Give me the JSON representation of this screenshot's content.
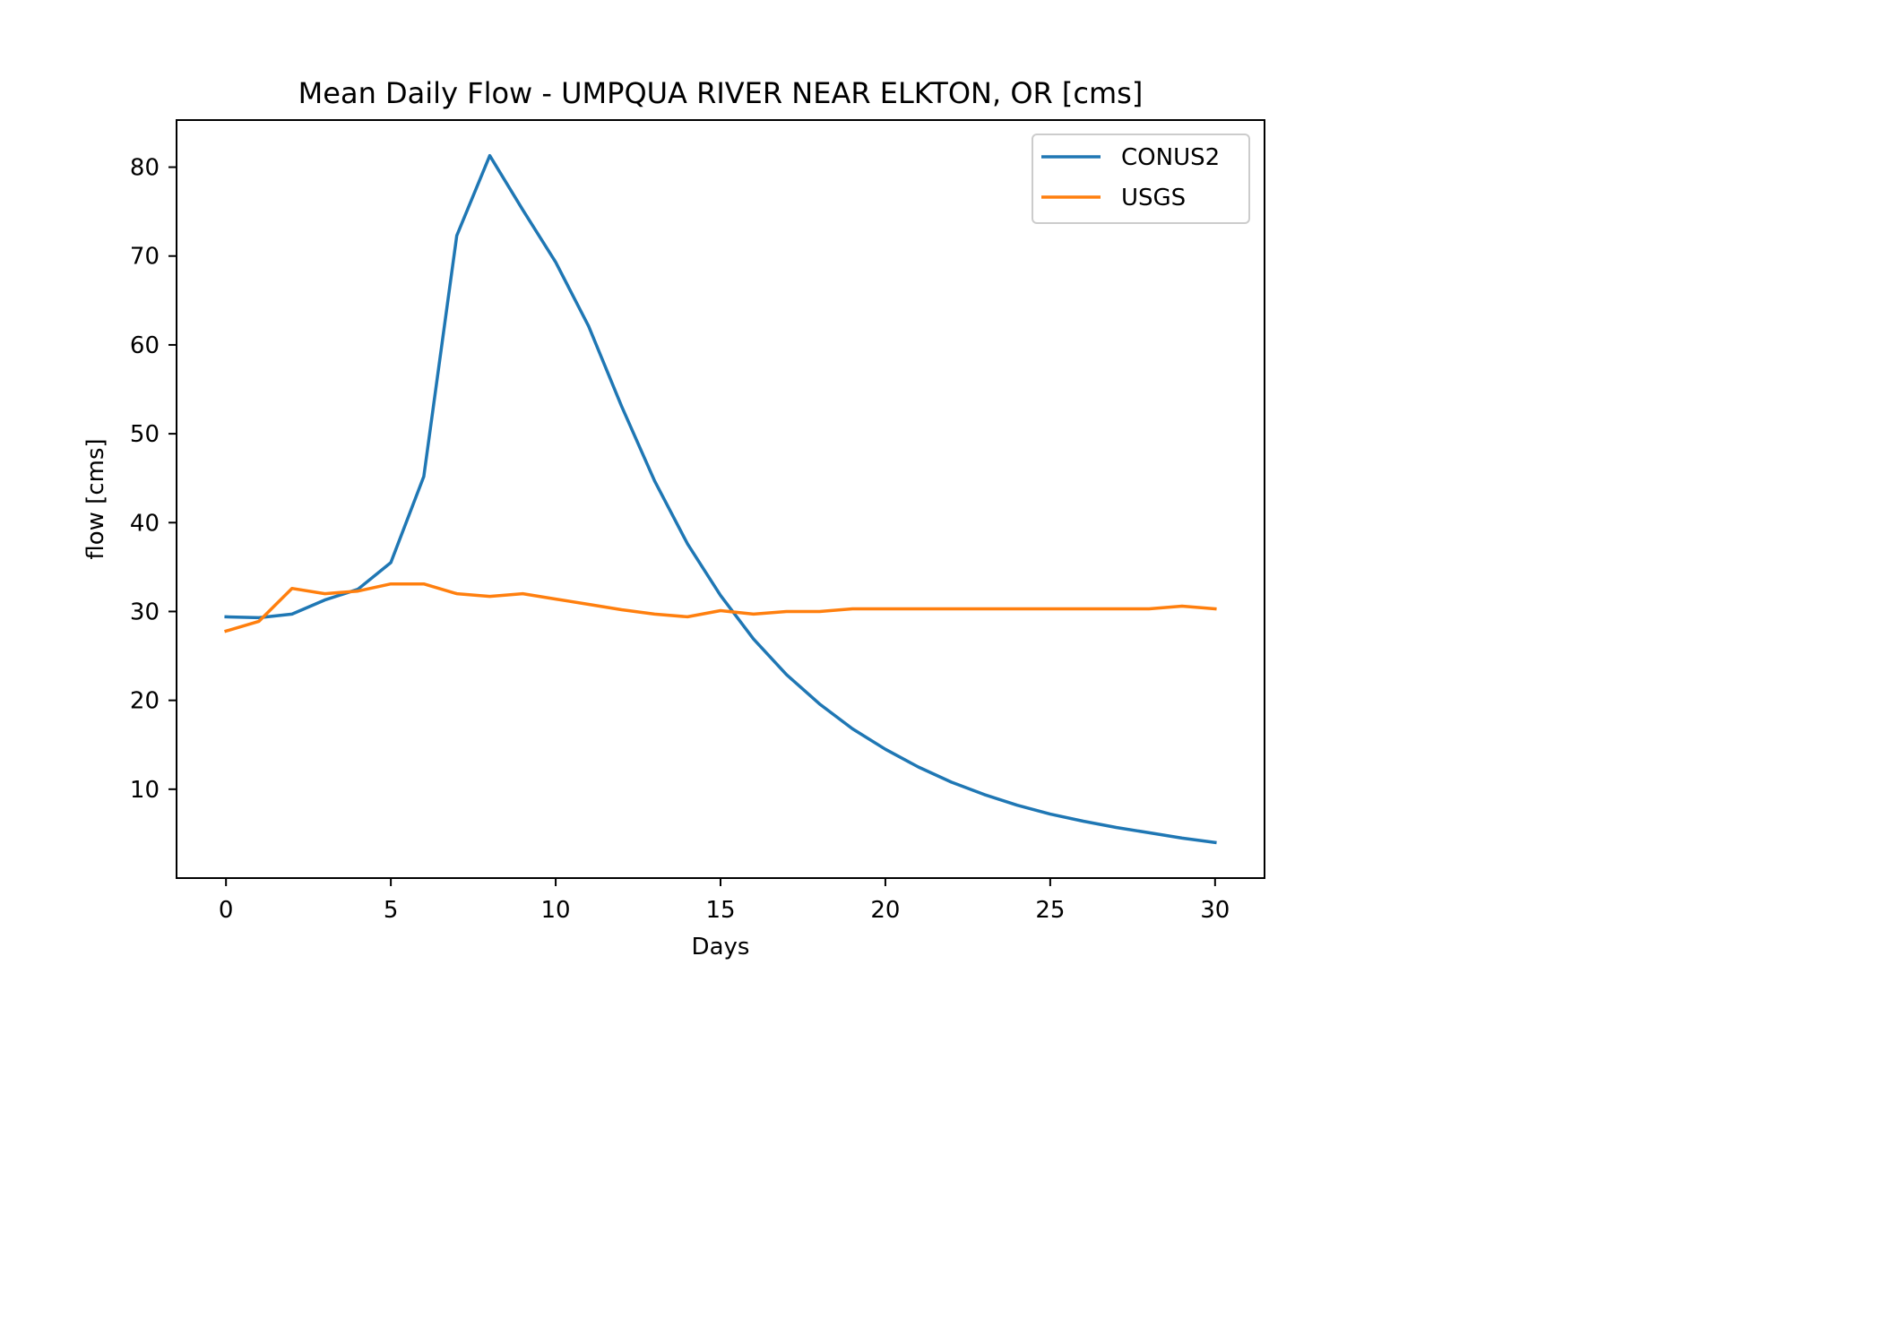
{
  "chart_data": {
    "type": "line",
    "title": "Mean Daily Flow - UMPQUA RIVER NEAR ELKTON, OR [cms]",
    "xlabel": "Days",
    "ylabel": "flow [cms]",
    "xlim": [
      -1.5,
      31.5
    ],
    "ylim": [
      0,
      85.3
    ],
    "xticks": [
      0,
      5,
      10,
      15,
      20,
      25,
      30
    ],
    "yticks": [
      10,
      20,
      30,
      40,
      50,
      60,
      70,
      80
    ],
    "grid": false,
    "legend_position": "top-right",
    "x": [
      0,
      1,
      2,
      3,
      4,
      5,
      6,
      7,
      8,
      9,
      10,
      11,
      12,
      13,
      14,
      15,
      16,
      17,
      18,
      19,
      20,
      21,
      22,
      23,
      24,
      25,
      26,
      27,
      28,
      29,
      30
    ],
    "series": [
      {
        "name": "CONUS2",
        "color": "#1f77b4",
        "values": [
          29.4,
          29.3,
          29.7,
          31.3,
          32.5,
          35.5,
          45.2,
          72.3,
          81.3,
          75.2,
          69.3,
          62.1,
          53.1,
          44.7,
          37.6,
          31.8,
          26.9,
          22.9,
          19.6,
          16.8,
          14.5,
          12.5,
          10.8,
          9.4,
          8.2,
          7.2,
          6.4,
          5.7,
          5.1,
          4.5,
          4.0
        ]
      },
      {
        "name": "USGS",
        "color": "#ff7f0e",
        "values": [
          27.8,
          28.9,
          32.6,
          32.0,
          32.3,
          33.1,
          33.1,
          32.0,
          31.7,
          32.0,
          31.4,
          30.8,
          30.2,
          29.7,
          29.4,
          30.1,
          29.7,
          30.0,
          30.0,
          30.3,
          30.3,
          30.3,
          30.3,
          30.3,
          30.3,
          30.3,
          30.3,
          30.3,
          30.3,
          30.6,
          30.3
        ]
      }
    ]
  }
}
